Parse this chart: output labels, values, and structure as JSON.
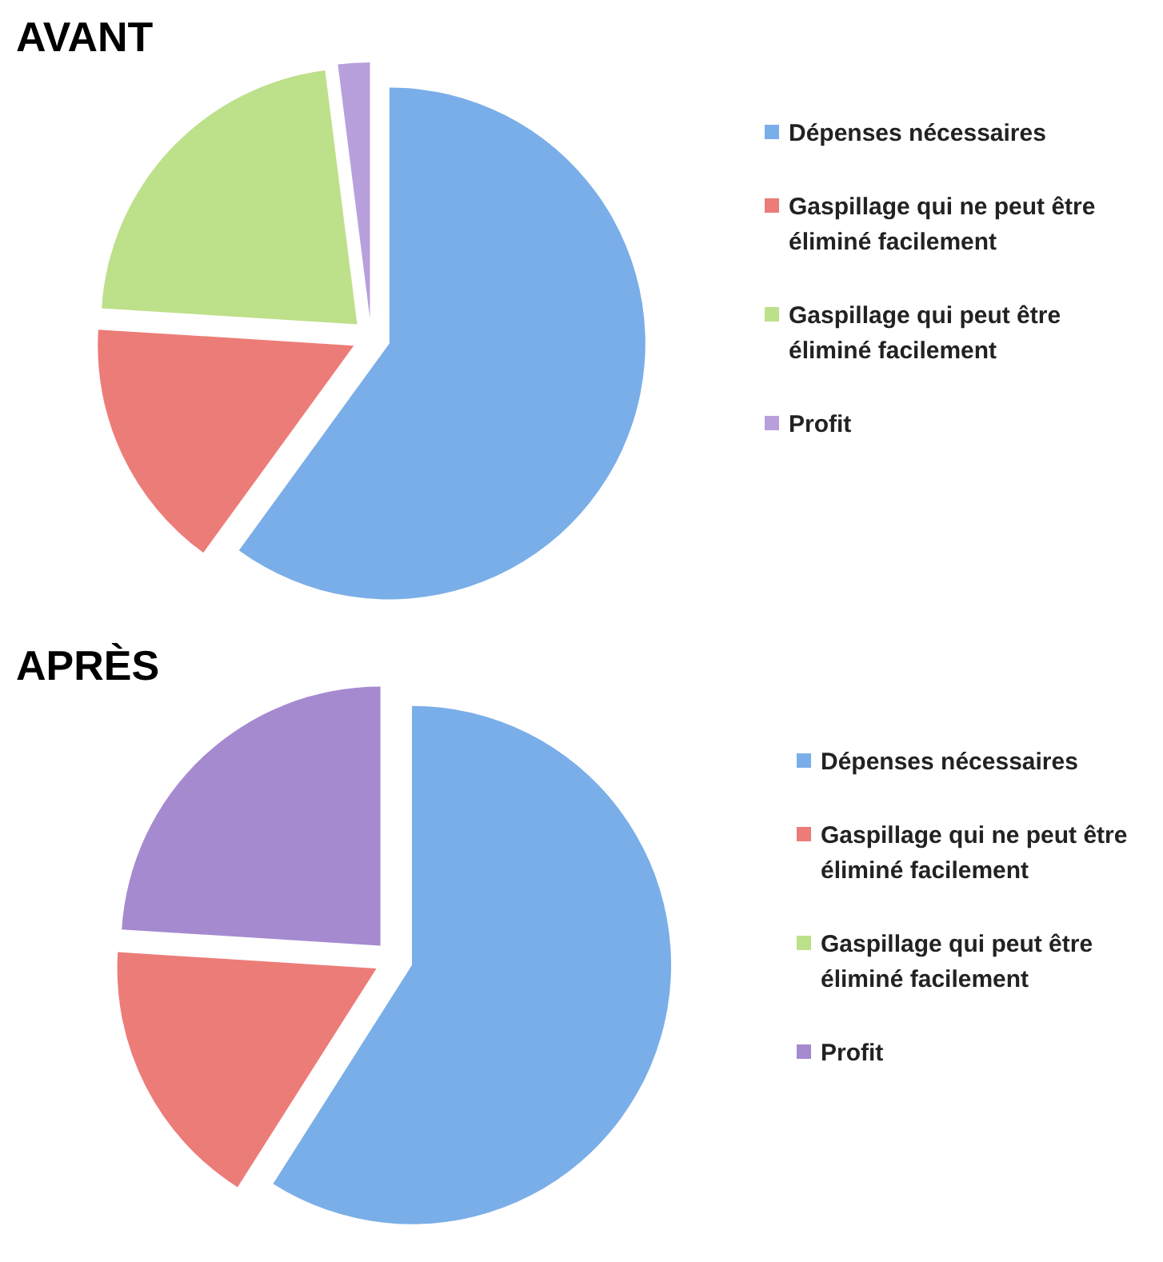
{
  "chart_data": [
    {
      "type": "pie",
      "title": "AVANT",
      "categories": [
        "Dépenses nécessaires",
        "Gaspillage qui ne peut être éliminé facilement",
        "Gaspillage qui peut être éliminé facilement",
        "Profit"
      ],
      "values": [
        60,
        16,
        22,
        2
      ],
      "colors": [
        "#7aaee8",
        "#ec7c78",
        "#bde08a",
        "#b7a0dc"
      ],
      "legend": "right"
    },
    {
      "type": "pie",
      "title": "APRÈS",
      "categories": [
        "Dépenses nécessaires",
        "Gaspillage qui ne peut être éliminé facilement",
        "Gaspillage qui peut être éliminé facilement",
        "Profit"
      ],
      "values": [
        59,
        17,
        0,
        24
      ],
      "colors": [
        "#7aaee8",
        "#ec7c78",
        "#bde08a",
        "#a58ad0"
      ],
      "legend": "right"
    }
  ]
}
